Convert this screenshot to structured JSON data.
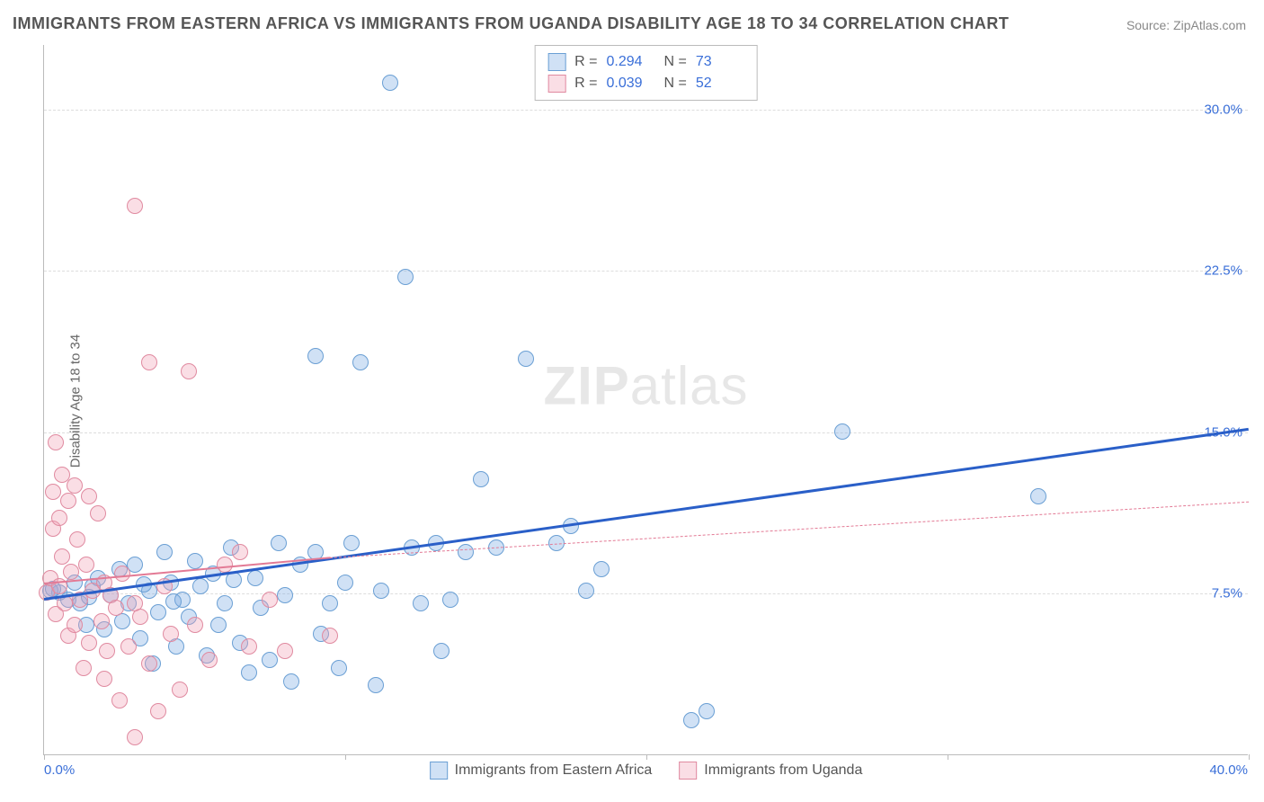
{
  "title": "IMMIGRANTS FROM EASTERN AFRICA VS IMMIGRANTS FROM UGANDA DISABILITY AGE 18 TO 34 CORRELATION CHART",
  "source_prefix": "Source: ",
  "source_name": "ZipAtlas.com",
  "ylabel": "Disability Age 18 to 34",
  "watermark_a": "ZIP",
  "watermark_b": "atlas",
  "chart": {
    "type": "scatter",
    "xlim": [
      0,
      40
    ],
    "ylim": [
      0,
      33
    ],
    "x_axis_label_left": "0.0%",
    "x_axis_label_right": "40.0%",
    "x_ticks": [
      0,
      10,
      20,
      30,
      40
    ],
    "y_gridlines": [
      {
        "v": 7.5,
        "label": "7.5%"
      },
      {
        "v": 15.0,
        "label": "15.0%"
      },
      {
        "v": 22.5,
        "label": "22.5%"
      },
      {
        "v": 30.0,
        "label": "30.0%"
      }
    ],
    "background_color": "#ffffff",
    "grid_color": "#dddddd",
    "axis_color": "#bbbbbb",
    "tick_label_color": "#3a6fd8",
    "marker_radius": 9,
    "marker_border_width": 1.5,
    "series": [
      {
        "name": "Immigrants from Eastern Africa",
        "fill": "rgba(120,170,225,0.35)",
        "stroke": "#6a9fd4",
        "trend_color": "#2a5fc8",
        "trend_width": 3,
        "trend_dash": "solid",
        "trend_dash_ext": "none",
        "R": "0.294",
        "N": "73",
        "trend": {
          "x0": 0,
          "y0": 7.3,
          "x1": 40,
          "y1": 15.2
        },
        "points": [
          [
            0.2,
            7.6
          ],
          [
            0.5,
            7.5
          ],
          [
            0.8,
            7.2
          ],
          [
            1.0,
            8.0
          ],
          [
            1.2,
            7.0
          ],
          [
            1.4,
            6.0
          ],
          [
            1.6,
            7.8
          ],
          [
            1.8,
            8.2
          ],
          [
            2.0,
            5.8
          ],
          [
            2.2,
            7.4
          ],
          [
            2.5,
            8.6
          ],
          [
            2.6,
            6.2
          ],
          [
            2.8,
            7.0
          ],
          [
            3.0,
            8.8
          ],
          [
            3.2,
            5.4
          ],
          [
            3.5,
            7.6
          ],
          [
            3.6,
            4.2
          ],
          [
            3.8,
            6.6
          ],
          [
            4.0,
            9.4
          ],
          [
            4.2,
            8.0
          ],
          [
            4.4,
            5.0
          ],
          [
            4.6,
            7.2
          ],
          [
            4.8,
            6.4
          ],
          [
            5.0,
            9.0
          ],
          [
            5.2,
            7.8
          ],
          [
            5.4,
            4.6
          ],
          [
            5.6,
            8.4
          ],
          [
            5.8,
            6.0
          ],
          [
            6.0,
            7.0
          ],
          [
            6.2,
            9.6
          ],
          [
            6.5,
            5.2
          ],
          [
            6.8,
            3.8
          ],
          [
            7.0,
            8.2
          ],
          [
            7.2,
            6.8
          ],
          [
            7.5,
            4.4
          ],
          [
            7.8,
            9.8
          ],
          [
            8.0,
            7.4
          ],
          [
            8.2,
            3.4
          ],
          [
            8.5,
            8.8
          ],
          [
            9.0,
            9.4
          ],
          [
            9.0,
            18.5
          ],
          [
            9.2,
            5.6
          ],
          [
            9.5,
            7.0
          ],
          [
            9.8,
            4.0
          ],
          [
            10.0,
            8.0
          ],
          [
            10.2,
            9.8
          ],
          [
            10.5,
            18.2
          ],
          [
            11.0,
            3.2
          ],
          [
            11.2,
            7.6
          ],
          [
            11.5,
            31.2
          ],
          [
            12.0,
            22.2
          ],
          [
            12.2,
            9.6
          ],
          [
            12.5,
            7.0
          ],
          [
            13.0,
            9.8
          ],
          [
            13.2,
            4.8
          ],
          [
            13.5,
            7.2
          ],
          [
            14.0,
            9.4
          ],
          [
            14.5,
            12.8
          ],
          [
            15.0,
            9.6
          ],
          [
            16.0,
            18.4
          ],
          [
            17.0,
            9.8
          ],
          [
            17.5,
            10.6
          ],
          [
            18.0,
            7.6
          ],
          [
            18.5,
            8.6
          ],
          [
            21.5,
            1.6
          ],
          [
            22.0,
            2.0
          ],
          [
            26.5,
            15.0
          ],
          [
            33.0,
            12.0
          ],
          [
            0.3,
            7.7
          ],
          [
            1.5,
            7.3
          ],
          [
            3.3,
            7.9
          ],
          [
            4.3,
            7.1
          ],
          [
            6.3,
            8.1
          ]
        ]
      },
      {
        "name": "Immigrants from Uganda",
        "fill": "rgba(240,160,180,0.35)",
        "stroke": "#e08aa0",
        "trend_color": "#e37a95",
        "trend_width": 2.5,
        "trend_dash": "solid",
        "trend_dash_ext": "dashed",
        "R": "0.039",
        "N": "52",
        "trend": {
          "x0": 0,
          "y0": 8.0,
          "x1": 9.5,
          "y1": 9.2,
          "x1_ext": 40,
          "y1_ext": 11.8
        },
        "points": [
          [
            0.1,
            7.5
          ],
          [
            0.2,
            8.2
          ],
          [
            0.3,
            10.5
          ],
          [
            0.3,
            12.2
          ],
          [
            0.4,
            6.5
          ],
          [
            0.4,
            14.5
          ],
          [
            0.5,
            11.0
          ],
          [
            0.5,
            7.8
          ],
          [
            0.6,
            9.2
          ],
          [
            0.6,
            13.0
          ],
          [
            0.7,
            7.0
          ],
          [
            0.8,
            11.8
          ],
          [
            0.8,
            5.5
          ],
          [
            0.9,
            8.5
          ],
          [
            1.0,
            12.5
          ],
          [
            1.0,
            6.0
          ],
          [
            1.1,
            10.0
          ],
          [
            1.2,
            7.2
          ],
          [
            1.3,
            4.0
          ],
          [
            1.4,
            8.8
          ],
          [
            1.5,
            12.0
          ],
          [
            1.5,
            5.2
          ],
          [
            1.6,
            7.6
          ],
          [
            1.8,
            11.2
          ],
          [
            1.9,
            6.2
          ],
          [
            2.0,
            8.0
          ],
          [
            2.0,
            3.5
          ],
          [
            2.1,
            4.8
          ],
          [
            2.2,
            7.4
          ],
          [
            2.4,
            6.8
          ],
          [
            2.5,
            2.5
          ],
          [
            2.6,
            8.4
          ],
          [
            2.8,
            5.0
          ],
          [
            3.0,
            7.0
          ],
          [
            3.0,
            0.8
          ],
          [
            3.2,
            6.4
          ],
          [
            3.5,
            4.2
          ],
          [
            3.5,
            18.2
          ],
          [
            3.8,
            2.0
          ],
          [
            4.0,
            7.8
          ],
          [
            4.2,
            5.6
          ],
          [
            4.5,
            3.0
          ],
          [
            4.8,
            17.8
          ],
          [
            5.0,
            6.0
          ],
          [
            5.5,
            4.4
          ],
          [
            6.0,
            8.8
          ],
          [
            6.5,
            9.4
          ],
          [
            3.0,
            25.5
          ],
          [
            6.8,
            5.0
          ],
          [
            7.5,
            7.2
          ],
          [
            8.0,
            4.8
          ],
          [
            9.5,
            5.5
          ]
        ]
      }
    ],
    "stats_box": {
      "R_label": "R =",
      "N_label": "N ="
    },
    "legend": [
      {
        "swatch_fill": "rgba(120,170,225,0.35)",
        "swatch_stroke": "#6a9fd4",
        "label": "Immigrants from Eastern Africa"
      },
      {
        "swatch_fill": "rgba(240,160,180,0.35)",
        "swatch_stroke": "#e08aa0",
        "label": "Immigrants from Uganda"
      }
    ]
  }
}
